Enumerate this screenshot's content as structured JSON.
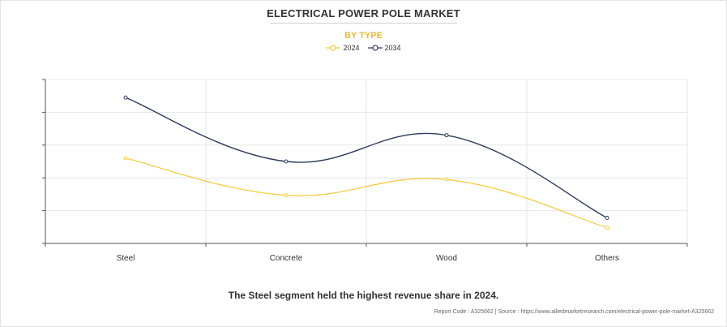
{
  "chart_data": {
    "type": "line",
    "title": "ELECTRICAL POWER POLE MARKET",
    "subtitle": "BY TYPE",
    "categories": [
      "Steel",
      "Concrete",
      "Wood",
      "Others"
    ],
    "series": [
      {
        "name": "2024",
        "color": "#f5c933",
        "values": [
          2.6,
          1.47,
          1.95,
          0.48
        ]
      },
      {
        "name": "2034",
        "color": "#2e3a5c",
        "values": [
          4.45,
          2.5,
          3.3,
          0.78
        ]
      }
    ],
    "ylim": [
      0,
      5
    ],
    "grid": true,
    "legend": "top-center",
    "xlabel": "",
    "ylabel": ""
  },
  "caption": "The Steel segment held the highest revenue share in 2024.",
  "source": "Report Code : A325662  |  Source : https://www.alliedmarketresearch.com/electrical-power-pole-market-A325662"
}
